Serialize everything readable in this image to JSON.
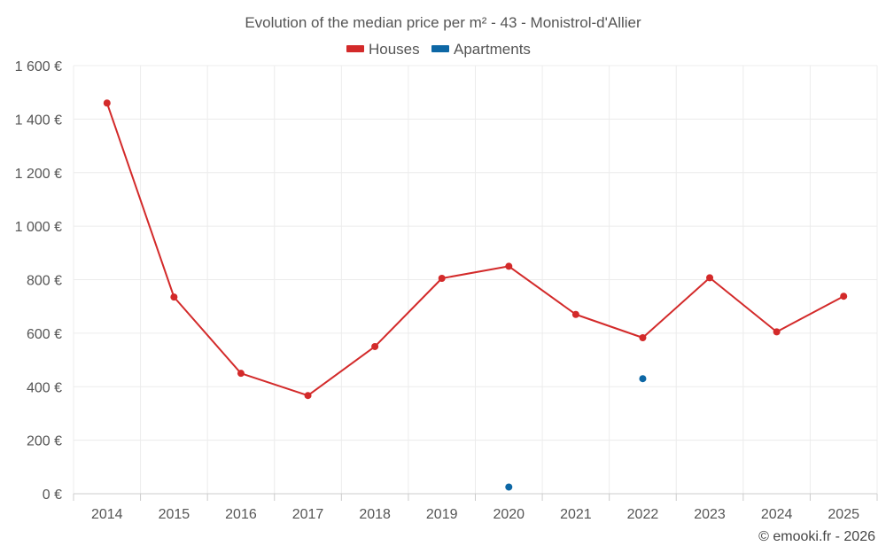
{
  "chart_data": {
    "type": "line",
    "title": "Evolution of the median price per m² - 43 - Monistrol-d'Allier",
    "categories": [
      "2014",
      "2015",
      "2016",
      "2017",
      "2018",
      "2019",
      "2020",
      "2021",
      "2022",
      "2023",
      "2024",
      "2025"
    ],
    "y_ticks": [
      "0 €",
      "200 €",
      "400 €",
      "600 €",
      "800 €",
      "1 000 €",
      "1 200 €",
      "1 400 €",
      "1 600 €"
    ],
    "ylim": [
      0,
      1600
    ],
    "grid": true,
    "legend_position": "top-center",
    "series": [
      {
        "name": "Houses",
        "color": "#d32a2a",
        "values": [
          1460,
          735,
          450,
          367,
          550,
          805,
          850,
          670,
          583,
          807,
          605,
          738
        ]
      },
      {
        "name": "Apartments",
        "color": "#0d67a5",
        "values": [
          null,
          null,
          null,
          null,
          null,
          null,
          25,
          null,
          430,
          null,
          null,
          null
        ]
      }
    ]
  },
  "footer": {
    "credit": "© emooki.fr - 2026"
  }
}
